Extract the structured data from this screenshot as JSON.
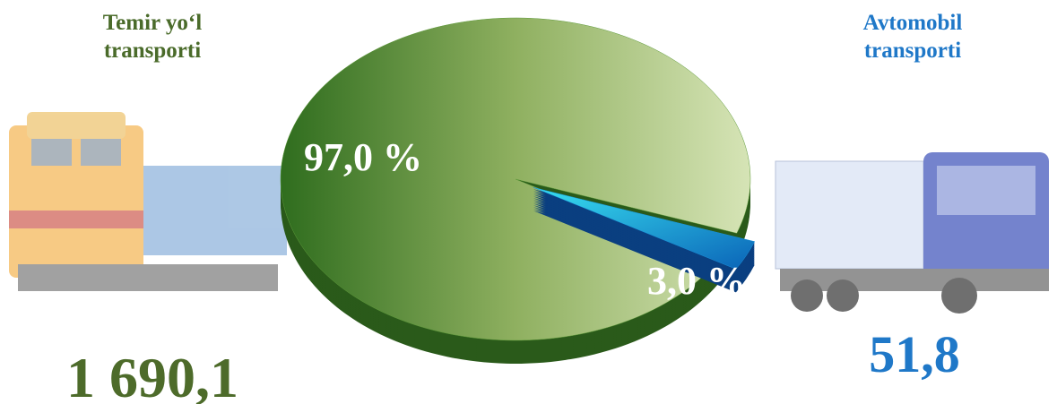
{
  "chart_data": {
    "type": "pie",
    "categories": [
      "Temir yo‘l transporti",
      "Avtomobil transporti"
    ],
    "values": [
      97.0,
      3.0
    ],
    "value_labels": [
      "97,0 %",
      "3,0 %"
    ],
    "colors": [
      "#5e9a3a",
      "#1a8fd8"
    ],
    "totals": [
      1690.1,
      51.8
    ],
    "totals_labels": [
      "1 690,1",
      "51,8"
    ]
  }
}
